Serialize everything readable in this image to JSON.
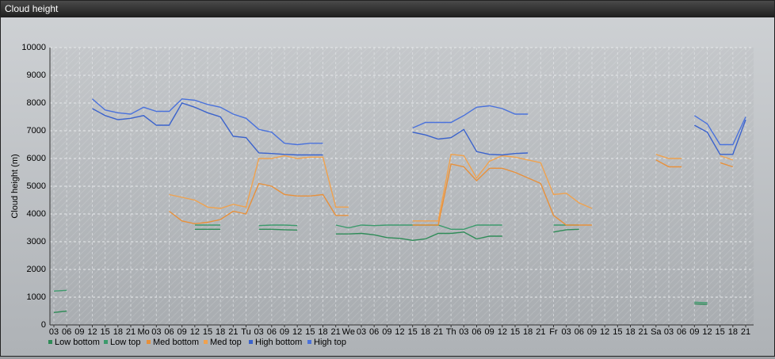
{
  "header": {
    "title": "Cloud height"
  },
  "chart_data": {
    "type": "line",
    "y_label": "Cloud height (m)",
    "categories": [
      "03",
      "06",
      "09",
      "12",
      "15",
      "18",
      "21",
      "Mo",
      "03",
      "06",
      "09",
      "12",
      "15",
      "18",
      "21",
      "Tu",
      "03",
      "06",
      "09",
      "12",
      "15",
      "18",
      "21",
      "We",
      "03",
      "06",
      "09",
      "12",
      "15",
      "18",
      "21",
      "Th",
      "03",
      "06",
      "09",
      "12",
      "15",
      "18",
      "21",
      "Fr",
      "03",
      "06",
      "09",
      "12",
      "15",
      "18",
      "21",
      "Sa",
      "03",
      "06",
      "09",
      "12",
      "15",
      "18",
      "21"
    ],
    "ylim": [
      0,
      10000
    ],
    "yticks": [
      0,
      1000,
      2000,
      3000,
      4000,
      5000,
      6000,
      7000,
      8000,
      9000,
      10000
    ],
    "grid": true,
    "series": [
      {
        "name": "Low bottom",
        "color": "#2e8b57",
        "values": [
          450,
          500,
          null,
          null,
          null,
          null,
          null,
          null,
          null,
          null,
          null,
          3450,
          3450,
          3450,
          null,
          null,
          3450,
          3450,
          3430,
          3420,
          null,
          null,
          3280,
          3280,
          3300,
          3250,
          3150,
          3120,
          3050,
          3100,
          3300,
          3300,
          3350,
          3100,
          3200,
          3200,
          null,
          null,
          null,
          3350,
          3430,
          3450,
          null,
          null,
          null,
          null,
          null,
          null,
          null,
          null,
          760,
          740,
          null,
          null,
          null
        ]
      },
      {
        "name": "Low top",
        "color": "#3c9a6c",
        "values": [
          1220,
          1250,
          null,
          null,
          null,
          null,
          null,
          null,
          null,
          null,
          null,
          3600,
          3600,
          3600,
          null,
          null,
          3580,
          3600,
          3600,
          3580,
          null,
          null,
          3600,
          3500,
          3600,
          3580,
          3600,
          3600,
          3600,
          3600,
          3600,
          3450,
          3450,
          3600,
          3600,
          3600,
          null,
          null,
          null,
          3600,
          3600,
          3600,
          null,
          null,
          null,
          null,
          null,
          null,
          null,
          null,
          820,
          800,
          null,
          null,
          null
        ]
      },
      {
        "name": "Med bottom",
        "color": "#e8903a",
        "values": [
          null,
          null,
          null,
          null,
          null,
          null,
          null,
          null,
          null,
          4100,
          3750,
          3650,
          3700,
          3800,
          4100,
          4000,
          5100,
          5000,
          4700,
          4650,
          4650,
          4700,
          3950,
          3950,
          null,
          null,
          null,
          null,
          3600,
          3600,
          3600,
          5800,
          5700,
          5200,
          5650,
          5650,
          5500,
          5300,
          5100,
          3950,
          3600,
          3600,
          3600,
          null,
          null,
          null,
          null,
          5950,
          5700,
          5700,
          null,
          null,
          5850,
          5700,
          null
        ]
      },
      {
        "name": "Med top",
        "color": "#f0a24e",
        "values": [
          null,
          null,
          null,
          null,
          null,
          null,
          null,
          null,
          null,
          4700,
          4600,
          4500,
          4250,
          4200,
          4350,
          4250,
          6000,
          6000,
          6100,
          6000,
          6050,
          6050,
          4250,
          4250,
          null,
          null,
          null,
          null,
          3750,
          3750,
          3750,
          6150,
          6100,
          5300,
          5900,
          6100,
          6050,
          5950,
          5850,
          4700,
          4750,
          4400,
          4200,
          null,
          null,
          null,
          null,
          6150,
          6000,
          6000,
          null,
          null,
          6100,
          5950,
          null
        ]
      },
      {
        "name": "High bottom",
        "color": "#3a62cc",
        "values": [
          null,
          null,
          null,
          7800,
          7550,
          7400,
          7450,
          7550,
          7200,
          7200,
          8000,
          7850,
          7650,
          7500,
          6800,
          6750,
          6200,
          6180,
          6150,
          6130,
          6130,
          6130,
          null,
          null,
          null,
          null,
          null,
          null,
          6950,
          6850,
          6700,
          6750,
          7050,
          6250,
          6150,
          6130,
          6180,
          6200,
          null,
          null,
          null,
          null,
          null,
          null,
          null,
          null,
          null,
          null,
          null,
          null,
          7200,
          6950,
          6150,
          6150,
          7400
        ]
      },
      {
        "name": "High top",
        "color": "#4a72dc",
        "values": [
          null,
          null,
          null,
          8150,
          7750,
          7650,
          7600,
          7850,
          7700,
          7700,
          8150,
          8100,
          7950,
          7850,
          7600,
          7450,
          7050,
          6950,
          6550,
          6500,
          6550,
          6550,
          null,
          null,
          null,
          null,
          null,
          null,
          7100,
          7300,
          7300,
          7300,
          7550,
          7850,
          7900,
          7800,
          7600,
          7600,
          null,
          null,
          null,
          null,
          null,
          null,
          null,
          null,
          null,
          null,
          null,
          null,
          7550,
          7250,
          6500,
          6500,
          7500
        ]
      }
    ]
  }
}
